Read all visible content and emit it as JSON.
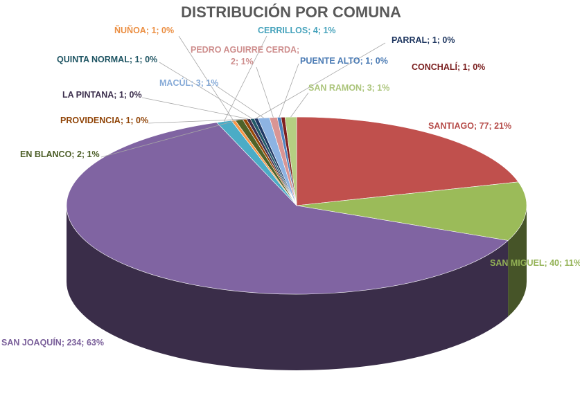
{
  "chart_data": {
    "type": "pie",
    "title": "DISTRIBUCIÓN POR COMUNA",
    "style": "3d",
    "slices": [
      {
        "name": "SANTIAGO",
        "value": 77,
        "percent": "21%",
        "label": "SANTIAGO; 77; 21%",
        "color": "#c0504d"
      },
      {
        "name": "SAN MIGUEL",
        "value": 40,
        "percent": "11%",
        "label": "SAN MIGUEL; 40; 11%",
        "color": "#9bbb59"
      },
      {
        "name": "SAN JOAQUÍN",
        "value": 234,
        "percent": "63%",
        "label": "SAN JOAQUÍN; 234; 63%",
        "color": "#8064a2"
      },
      {
        "name": "CERRILLOS",
        "value": 4,
        "percent": "1%",
        "label": "CERRILLOS; 4; 1%",
        "color": "#4bacc6"
      },
      {
        "name": "ÑUÑOA",
        "value": 1,
        "percent": "0%",
        "label": "ÑUÑOA; 1; 0%",
        "color": "#f79646"
      },
      {
        "name": "EN BLANCO",
        "value": 2,
        "percent": "1%",
        "label": "EN BLANCO; 2; 1%",
        "color": "#4f6228"
      },
      {
        "name": "PROVIDENCIA",
        "value": 1,
        "percent": "0%",
        "label": "PROVIDENCIA; 1; 0%",
        "color": "#984807"
      },
      {
        "name": "LA PINTANA",
        "value": 1,
        "percent": "0%",
        "label": "LA PINTANA; 1; 0%",
        "color": "#3f3151"
      },
      {
        "name": "QUINTA NORMAL",
        "value": 1,
        "percent": "0%",
        "label": "QUINTA NORMAL; 1; 0%",
        "color": "#215968"
      },
      {
        "name": "PARRAL",
        "value": 1,
        "percent": "0%",
        "label": "PARRAL; 1; 0%",
        "color": "#1f3864"
      },
      {
        "name": "MACÚL",
        "value": 3,
        "percent": "1%",
        "label": "MACÚL; 3; 1%",
        "color": "#8db3e2"
      },
      {
        "name": "PEDRO AGUIRRE CERDA",
        "value": 2,
        "percent": "1%",
        "label": "PEDRO AGUIRRE CERDA; 2; 1%",
        "color": "#d99594"
      },
      {
        "name": "PUENTE ALTO",
        "value": 1,
        "percent": "0%",
        "label": "PUENTE ALTO; 1; 0%",
        "color": "#4f81bd"
      },
      {
        "name": "CONCHALÍ",
        "value": 1,
        "percent": "0%",
        "label": "CONCHALÍ; 1; 0%",
        "color": "#7f1f1f"
      },
      {
        "name": "SAN RAMON",
        "value": 3,
        "percent": "1%",
        "label": "SAN RAMON; 3; 1%",
        "color": "#b5cf82"
      }
    ]
  }
}
